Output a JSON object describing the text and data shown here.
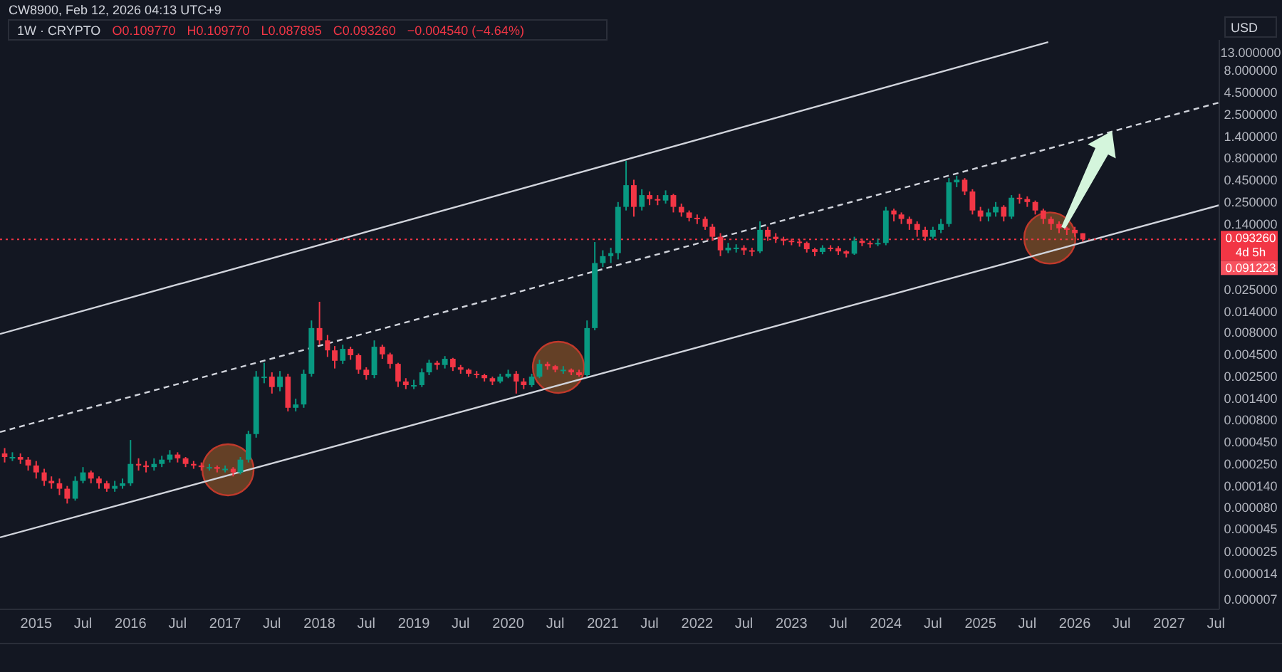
{
  "chart_data": {
    "type": "candlestick",
    "title": "1W · CRYPTO",
    "ylabel": "USD",
    "annotations": [
      "CW8900, Feb 12, 2026 04:13 UTC+9",
      "O0.109770",
      "H0.109770",
      "L0.087895",
      "C0.093260",
      "−0.004540 (−4.64%)",
      "4d 5h",
      "0.091223"
    ],
    "log": true,
    "grid": false,
    "xlim": [
      "2014-08-14",
      "2027-07-14"
    ],
    "xticks": [
      {
        "value": "2015-01-01",
        "label": "2015"
      },
      {
        "value": "2015-07-01",
        "label": "Jul"
      },
      {
        "value": "2016-01-01",
        "label": "2016"
      },
      {
        "value": "2016-07-01",
        "label": "Jul"
      },
      {
        "value": "2017-01-01",
        "label": "2017"
      },
      {
        "value": "2017-07-01",
        "label": "Jul"
      },
      {
        "value": "2018-01-01",
        "label": "2018"
      },
      {
        "value": "2018-07-01",
        "label": "Jul"
      },
      {
        "value": "2019-01-01",
        "label": "2019"
      },
      {
        "value": "2019-07-01",
        "label": "Jul"
      },
      {
        "value": "2020-01-01",
        "label": "2020"
      },
      {
        "value": "2020-07-01",
        "label": "Jul"
      },
      {
        "value": "2021-01-01",
        "label": "2021"
      },
      {
        "value": "2021-07-01",
        "label": "Jul"
      },
      {
        "value": "2022-01-01",
        "label": "2022"
      },
      {
        "value": "2022-07-01",
        "label": "Jul"
      },
      {
        "value": "2023-01-01",
        "label": "2023"
      },
      {
        "value": "2023-07-01",
        "label": "Jul"
      },
      {
        "value": "2024-01-01",
        "label": "2024"
      },
      {
        "value": "2024-07-01",
        "label": "Jul"
      },
      {
        "value": "2025-01-01",
        "label": "2025"
      },
      {
        "value": "2025-07-01",
        "label": "Jul"
      },
      {
        "value": "2026-01-01",
        "label": "2026"
      },
      {
        "value": "2026-07-01",
        "label": "Jul"
      },
      {
        "value": "2027-01-01",
        "label": "2027"
      },
      {
        "value": "2027-07-01",
        "label": "Jul"
      }
    ],
    "ylim": [
      5.4e-06,
      18
    ],
    "yticks": [
      {
        "value": 13,
        "label": "13.000000"
      },
      {
        "value": 8,
        "label": "8.000000"
      },
      {
        "value": 4.5,
        "label": "4.500000"
      },
      {
        "value": 2.5,
        "label": "2.500000"
      },
      {
        "value": 1.4,
        "label": "1.400000"
      },
      {
        "value": 0.8,
        "label": "0.800000"
      },
      {
        "value": 0.45,
        "label": "0.450000"
      },
      {
        "value": 0.25,
        "label": "0.250000"
      },
      {
        "value": 0.14,
        "label": "0.140000"
      },
      {
        "value": 0.025,
        "label": "0.025000"
      },
      {
        "value": 0.014,
        "label": "0.014000"
      },
      {
        "value": 0.008,
        "label": "0.008000"
      },
      {
        "value": 0.0045,
        "label": "0.004500"
      },
      {
        "value": 0.0025,
        "label": "0.002500"
      },
      {
        "value": 0.0014,
        "label": "0.001400"
      },
      {
        "value": 0.0008,
        "label": "0.000800"
      },
      {
        "value": 0.00045,
        "label": "0.000450"
      },
      {
        "value": 0.00025,
        "label": "0.000250"
      },
      {
        "value": 0.00014,
        "label": "0.000140"
      },
      {
        "value": 8e-05,
        "label": "0.000080"
      },
      {
        "value": 4.5e-05,
        "label": "0.000045"
      },
      {
        "value": 2.5e-05,
        "label": "0.000025"
      },
      {
        "value": 1.4e-05,
        "label": "0.000014"
      },
      {
        "value": 7e-06,
        "label": "0.000007"
      }
    ],
    "ref_lines": [
      {
        "axis": "y",
        "value": 0.09326,
        "label": "0.093260",
        "color": "#f23645",
        "line_style": "dotted"
      }
    ],
    "x": [
      "2014-09",
      "2014-10",
      "2014-11",
      "2014-12",
      "2015-01",
      "2015-02",
      "2015-03",
      "2015-04",
      "2015-05",
      "2015-06",
      "2015-07",
      "2015-08",
      "2015-09",
      "2015-10",
      "2015-11",
      "2015-12",
      "2016-01",
      "2016-02",
      "2016-03",
      "2016-04",
      "2016-05",
      "2016-06",
      "2016-07",
      "2016-08",
      "2016-09",
      "2016-10",
      "2016-11",
      "2016-12",
      "2017-01",
      "2017-02",
      "2017-03",
      "2017-04",
      "2017-05",
      "2017-06",
      "2017-07",
      "2017-08",
      "2017-09",
      "2017-10",
      "2017-11",
      "2017-12",
      "2018-01",
      "2018-02",
      "2018-03",
      "2018-04",
      "2018-05",
      "2018-06",
      "2018-07",
      "2018-08",
      "2018-09",
      "2018-10",
      "2018-11",
      "2018-12",
      "2019-01",
      "2019-02",
      "2019-03",
      "2019-04",
      "2019-05",
      "2019-06",
      "2019-07",
      "2019-08",
      "2019-09",
      "2019-10",
      "2019-11",
      "2019-12",
      "2020-01",
      "2020-02",
      "2020-03",
      "2020-04",
      "2020-05",
      "2020-06",
      "2020-07",
      "2020-08",
      "2020-09",
      "2020-10",
      "2020-11",
      "2020-12",
      "2021-01",
      "2021-02",
      "2021-03",
      "2021-04",
      "2021-05",
      "2021-06",
      "2021-07",
      "2021-08",
      "2021-09",
      "2021-10",
      "2021-11",
      "2021-12",
      "2022-01",
      "2022-02",
      "2022-03",
      "2022-04",
      "2022-05",
      "2022-06",
      "2022-07",
      "2022-08",
      "2022-09",
      "2022-10",
      "2022-11",
      "2022-12",
      "2023-01",
      "2023-02",
      "2023-03",
      "2023-04",
      "2023-05",
      "2023-06",
      "2023-07",
      "2023-08",
      "2023-09",
      "2023-10",
      "2023-11",
      "2023-12",
      "2024-01",
      "2024-02",
      "2024-03",
      "2024-04",
      "2024-05",
      "2024-06",
      "2024-07",
      "2024-08",
      "2024-09",
      "2024-10",
      "2024-11",
      "2024-12",
      "2025-01",
      "2025-02",
      "2025-03",
      "2025-04",
      "2025-05",
      "2025-06",
      "2025-07",
      "2025-08",
      "2025-09",
      "2025-10",
      "2025-11",
      "2025-12",
      "2026-01",
      "2026-02"
    ],
    "ohlc": [
      [
        0.00033,
        0.00038,
        0.00026,
        0.0003
      ],
      [
        0.0003,
        0.00034,
        0.00027,
        0.0003
      ],
      [
        0.0003,
        0.00033,
        0.00025,
        0.00028
      ],
      [
        0.00028,
        0.0003,
        0.00021,
        0.00024
      ],
      [
        0.00024,
        0.00027,
        0.00017,
        0.0002
      ],
      [
        0.0002,
        0.00022,
        0.00014,
        0.00016
      ],
      [
        0.00016,
        0.00018,
        0.00013,
        0.00015
      ],
      [
        0.00015,
        0.00017,
        0.00011,
        0.00013
      ],
      [
        0.00013,
        0.00014,
        8.8e-05,
        0.0001
      ],
      [
        0.0001,
        0.00018,
        9.5e-05,
        0.00016
      ],
      [
        0.00016,
        0.00023,
        0.00015,
        0.0002
      ],
      [
        0.0002,
        0.00021,
        0.00015,
        0.00017
      ],
      [
        0.00017,
        0.00018,
        0.00013,
        0.00015
      ],
      [
        0.00015,
        0.00016,
        0.00012,
        0.00013
      ],
      [
        0.00013,
        0.00016,
        0.00012,
        0.00014
      ],
      [
        0.00014,
        0.00017,
        0.00013,
        0.00015
      ],
      [
        0.00015,
        0.00047,
        0.00014,
        0.00025
      ],
      [
        0.00025,
        0.00029,
        0.00021,
        0.00024
      ],
      [
        0.00024,
        0.00027,
        0.0002,
        0.00023
      ],
      [
        0.00023,
        0.00029,
        0.00021,
        0.00025
      ],
      [
        0.00025,
        0.00031,
        0.00023,
        0.00028
      ],
      [
        0.00028,
        0.00036,
        0.00026,
        0.00032
      ],
      [
        0.00032,
        0.00034,
        0.00026,
        0.00029
      ],
      [
        0.00029,
        0.0003,
        0.00023,
        0.00025
      ],
      [
        0.00025,
        0.00027,
        0.00022,
        0.00024
      ],
      [
        0.00024,
        0.00026,
        0.00021,
        0.00023
      ],
      [
        0.00023,
        0.00025,
        0.00021,
        0.00023
      ],
      [
        0.00023,
        0.00024,
        0.0002,
        0.00022
      ],
      [
        0.00022,
        0.00024,
        0.0002,
        0.00022
      ],
      [
        0.00022,
        0.00023,
        0.00018,
        0.0002
      ],
      [
        0.0002,
        0.0003,
        0.00019,
        0.00028
      ],
      [
        0.00028,
        0.0006,
        0.00026,
        0.00055
      ],
      [
        0.00055,
        0.0029,
        0.0005,
        0.0025
      ],
      [
        0.0025,
        0.0036,
        0.0021,
        0.0025
      ],
      [
        0.0025,
        0.0028,
        0.0016,
        0.0019
      ],
      [
        0.0019,
        0.0029,
        0.0017,
        0.0025
      ],
      [
        0.0025,
        0.0027,
        0.001,
        0.0011
      ],
      [
        0.0011,
        0.0014,
        0.001,
        0.0012
      ],
      [
        0.0012,
        0.003,
        0.0011,
        0.0027
      ],
      [
        0.0027,
        0.011,
        0.0025,
        0.009
      ],
      [
        0.009,
        0.018,
        0.0058,
        0.0065
      ],
      [
        0.0065,
        0.0075,
        0.0042,
        0.005
      ],
      [
        0.005,
        0.0056,
        0.0031,
        0.0038
      ],
      [
        0.0038,
        0.0058,
        0.0035,
        0.0052
      ],
      [
        0.0052,
        0.0055,
        0.0039,
        0.0044
      ],
      [
        0.0044,
        0.0046,
        0.0027,
        0.003
      ],
      [
        0.003,
        0.0032,
        0.0023,
        0.0026
      ],
      [
        0.0026,
        0.0065,
        0.0024,
        0.0055
      ],
      [
        0.0055,
        0.0058,
        0.004,
        0.0045
      ],
      [
        0.0045,
        0.0047,
        0.0031,
        0.0035
      ],
      [
        0.0035,
        0.0036,
        0.0019,
        0.0022
      ],
      [
        0.0022,
        0.0024,
        0.0018,
        0.002
      ],
      [
        0.002,
        0.0023,
        0.0018,
        0.002
      ],
      [
        0.002,
        0.0031,
        0.0019,
        0.0028
      ],
      [
        0.0028,
        0.0039,
        0.0026,
        0.0036
      ],
      [
        0.0036,
        0.0038,
        0.003,
        0.0034
      ],
      [
        0.0034,
        0.0043,
        0.0031,
        0.004
      ],
      [
        0.004,
        0.0041,
        0.0029,
        0.0032
      ],
      [
        0.0032,
        0.0034,
        0.0027,
        0.003
      ],
      [
        0.003,
        0.0031,
        0.0025,
        0.0027
      ],
      [
        0.0027,
        0.0029,
        0.0024,
        0.0026
      ],
      [
        0.0026,
        0.0027,
        0.0022,
        0.0024
      ],
      [
        0.0024,
        0.0025,
        0.002,
        0.0022
      ],
      [
        0.0022,
        0.0027,
        0.0021,
        0.0025
      ],
      [
        0.0025,
        0.003,
        0.0024,
        0.0027
      ],
      [
        0.0027,
        0.0029,
        0.0016,
        0.0022
      ],
      [
        0.0022,
        0.0024,
        0.0018,
        0.002
      ],
      [
        0.002,
        0.0027,
        0.0019,
        0.0025
      ],
      [
        0.0025,
        0.0039,
        0.0024,
        0.0035
      ],
      [
        0.0035,
        0.0037,
        0.003,
        0.0033
      ],
      [
        0.0033,
        0.0034,
        0.0028,
        0.003
      ],
      [
        0.003,
        0.0033,
        0.0027,
        0.003
      ],
      [
        0.003,
        0.0031,
        0.0026,
        0.0028
      ],
      [
        0.0028,
        0.003,
        0.0025,
        0.0026
      ],
      [
        0.0026,
        0.011,
        0.0025,
        0.009
      ],
      [
        0.009,
        0.087,
        0.0085,
        0.05
      ],
      [
        0.05,
        0.07,
        0.045,
        0.06
      ],
      [
        0.06,
        0.075,
        0.05,
        0.065
      ],
      [
        0.065,
        0.25,
        0.055,
        0.22
      ],
      [
        0.22,
        0.74,
        0.2,
        0.39
      ],
      [
        0.39,
        0.45,
        0.17,
        0.22
      ],
      [
        0.22,
        0.35,
        0.2,
        0.3
      ],
      [
        0.3,
        0.33,
        0.23,
        0.27
      ],
      [
        0.27,
        0.3,
        0.23,
        0.26
      ],
      [
        0.26,
        0.34,
        0.24,
        0.3
      ],
      [
        0.3,
        0.31,
        0.19,
        0.22
      ],
      [
        0.22,
        0.24,
        0.17,
        0.19
      ],
      [
        0.19,
        0.2,
        0.15,
        0.165
      ],
      [
        0.165,
        0.18,
        0.14,
        0.16
      ],
      [
        0.16,
        0.17,
        0.12,
        0.13
      ],
      [
        0.13,
        0.14,
        0.09,
        0.1
      ],
      [
        0.1,
        0.11,
        0.06,
        0.07
      ],
      [
        0.07,
        0.085,
        0.065,
        0.075
      ],
      [
        0.075,
        0.082,
        0.066,
        0.075
      ],
      [
        0.075,
        0.08,
        0.062,
        0.07
      ],
      [
        0.07,
        0.075,
        0.06,
        0.068
      ],
      [
        0.068,
        0.15,
        0.065,
        0.12
      ],
      [
        0.12,
        0.13,
        0.09,
        0.1
      ],
      [
        0.1,
        0.11,
        0.085,
        0.094
      ],
      [
        0.094,
        0.1,
        0.08,
        0.09
      ],
      [
        0.09,
        0.095,
        0.08,
        0.088
      ],
      [
        0.088,
        0.093,
        0.077,
        0.085
      ],
      [
        0.085,
        0.088,
        0.066,
        0.072
      ],
      [
        0.072,
        0.075,
        0.06,
        0.067
      ],
      [
        0.067,
        0.08,
        0.063,
        0.075
      ],
      [
        0.075,
        0.08,
        0.068,
        0.074
      ],
      [
        0.074,
        0.078,
        0.062,
        0.068
      ],
      [
        0.068,
        0.07,
        0.058,
        0.064
      ],
      [
        0.064,
        0.1,
        0.062,
        0.09
      ],
      [
        0.09,
        0.095,
        0.078,
        0.085
      ],
      [
        0.085,
        0.09,
        0.075,
        0.082
      ],
      [
        0.082,
        0.095,
        0.078,
        0.085
      ],
      [
        0.085,
        0.22,
        0.08,
        0.2
      ],
      [
        0.2,
        0.21,
        0.15,
        0.18
      ],
      [
        0.18,
        0.19,
        0.14,
        0.16
      ],
      [
        0.16,
        0.17,
        0.12,
        0.14
      ],
      [
        0.14,
        0.15,
        0.1,
        0.12
      ],
      [
        0.12,
        0.13,
        0.09,
        0.1
      ],
      [
        0.1,
        0.13,
        0.095,
        0.12
      ],
      [
        0.12,
        0.16,
        0.11,
        0.14
      ],
      [
        0.14,
        0.47,
        0.13,
        0.42
      ],
      [
        0.42,
        0.5,
        0.37,
        0.45
      ],
      [
        0.45,
        0.47,
        0.3,
        0.33
      ],
      [
        0.33,
        0.35,
        0.18,
        0.2
      ],
      [
        0.2,
        0.22,
        0.15,
        0.17
      ],
      [
        0.17,
        0.21,
        0.15,
        0.19
      ],
      [
        0.19,
        0.25,
        0.17,
        0.22
      ],
      [
        0.22,
        0.23,
        0.15,
        0.17
      ],
      [
        0.17,
        0.3,
        0.16,
        0.28
      ],
      [
        0.28,
        0.31,
        0.24,
        0.27
      ],
      [
        0.27,
        0.29,
        0.22,
        0.25
      ],
      [
        0.25,
        0.26,
        0.18,
        0.2
      ],
      [
        0.2,
        0.21,
        0.14,
        0.16
      ],
      [
        0.16,
        0.17,
        0.12,
        0.14
      ],
      [
        0.14,
        0.15,
        0.11,
        0.125
      ],
      [
        0.125,
        0.13,
        0.105,
        0.12
      ],
      [
        0.12,
        0.13,
        0.1,
        0.11
      ],
      [
        0.10977,
        0.10977,
        0.087895,
        0.09326
      ]
    ],
    "series": [
      {
        "type": "line",
        "color": "#d1d4dc",
        "line_style": "solid",
        "x": [
          "2014-08-14",
          "2025-09-20"
        ],
        "values": [
          0.0077,
          17
        ]
      },
      {
        "type": "line",
        "color": "#d1d4dc",
        "line_style": "dashed",
        "x": [
          "2014-08-14",
          "2027-07-14"
        ],
        "values": [
          0.00058,
          3.45
        ]
      },
      {
        "type": "line",
        "color": "#d1d4dc",
        "line_style": "solid",
        "x": [
          "2014-08-14",
          "2027-07-14"
        ],
        "values": [
          3.6e-05,
          0.23
        ]
      }
    ]
  }
}
